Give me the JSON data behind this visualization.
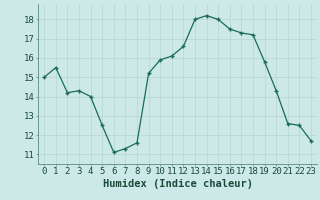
{
  "x": [
    0,
    1,
    2,
    3,
    4,
    5,
    6,
    7,
    8,
    9,
    10,
    11,
    12,
    13,
    14,
    15,
    16,
    17,
    18,
    19,
    20,
    21,
    22,
    23
  ],
  "y": [
    15.0,
    15.5,
    14.2,
    14.3,
    14.0,
    12.5,
    11.1,
    11.3,
    11.6,
    15.2,
    15.9,
    16.1,
    16.6,
    18.0,
    18.2,
    18.0,
    17.5,
    17.3,
    17.2,
    15.8,
    14.3,
    12.6,
    12.5,
    11.7
  ],
  "xlabel": "Humidex (Indice chaleur)",
  "xlim": [
    -0.5,
    23.5
  ],
  "ylim": [
    10.5,
    18.8
  ],
  "yticks": [
    11,
    12,
    13,
    14,
    15,
    16,
    17,
    18
  ],
  "xtick_labels": [
    "0",
    "1",
    "2",
    "3",
    "4",
    "5",
    "6",
    "7",
    "8",
    "9",
    "10",
    "11",
    "12",
    "13",
    "14",
    "15",
    "16",
    "17",
    "18",
    "19",
    "20",
    "21",
    "22",
    "23"
  ],
  "line_color": "#1a6b5a",
  "marker_color": "#1a6b5a",
  "bg_color": "#cce9e7",
  "grid_color": "#b8d8d6",
  "xlabel_fontsize": 7.5,
  "tick_fontsize": 6.5
}
